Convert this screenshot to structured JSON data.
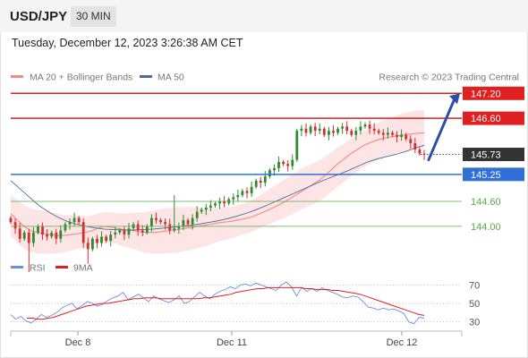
{
  "header": {
    "symbol": "USD/JPY",
    "timeframe": "30 MIN"
  },
  "timestamp": "Tuesday, December 12, 2023 3:26:38 AM CET",
  "legend": {
    "ma20_label": "MA 20 + Bollinger Bands",
    "ma50_label": "MA 50",
    "credit": "Research © 2023 Trading Central",
    "rsi_label": "RSI",
    "ma9_label": "9MA"
  },
  "colors": {
    "resistance": "#e02020",
    "pivot": "#2f6fd6",
    "support": "#5aa64a",
    "current": "#333333",
    "up_candle": "#2e8b2e",
    "down_candle": "#d32f2f",
    "ma20": "#f28b82",
    "ma50": "#4a6a9a",
    "band_fill": "#fde0e0",
    "arrow": "#2a4fa8",
    "rsi": "#6b8ee0",
    "rsi_ma": "#e02020"
  },
  "chart_data": [
    {
      "type": "candlestick",
      "title": "USD/JPY",
      "timeframe": "30 MIN",
      "x_ticks": [
        "Dec 8",
        "Dec 11",
        "Dec 12"
      ],
      "ylim": [
        143.2,
        147.4
      ],
      "current_price": 145.73,
      "levels": [
        {
          "name": "resistance",
          "value": 147.2,
          "label": "147.20"
        },
        {
          "name": "resistance",
          "value": 146.6,
          "label": "146.60"
        },
        {
          "name": "pivot",
          "value": 145.25,
          "label": "145.25"
        },
        {
          "name": "support",
          "value": 144.6,
          "label": "144.60"
        },
        {
          "name": "support",
          "value": 144.0,
          "label": "144.00"
        }
      ],
      "forecast_arrow": {
        "from": 145.6,
        "to": 147.2
      },
      "closes": [
        144.1,
        143.95,
        143.7,
        143.85,
        143.6,
        143.85,
        144.0,
        143.8,
        143.75,
        143.85,
        143.7,
        143.9,
        144.05,
        144.1,
        144.2,
        144.1,
        143.6,
        143.45,
        143.7,
        143.6,
        143.75,
        143.65,
        143.8,
        143.85,
        143.9,
        143.8,
        143.95,
        144.05,
        143.9,
        143.85,
        144.0,
        144.2,
        144.15,
        144.1,
        144.05,
        143.9,
        143.95,
        144.0,
        144.15,
        144.05,
        144.2,
        144.35,
        144.4,
        144.45,
        144.5,
        144.55,
        144.6,
        144.55,
        144.65,
        144.7,
        144.75,
        144.85,
        144.8,
        144.95,
        145.1,
        145.05,
        145.2,
        145.35,
        145.4,
        145.55,
        145.5,
        145.45,
        145.6,
        146.3,
        146.35,
        146.25,
        146.4,
        146.3,
        146.35,
        146.2,
        146.3,
        146.25,
        146.35,
        146.4,
        146.3,
        146.2,
        146.3,
        146.4,
        146.45,
        146.35,
        146.3,
        146.25,
        146.2,
        146.25,
        146.2,
        146.15,
        146.2,
        146.1,
        146.0,
        145.85,
        145.75,
        145.73
      ],
      "ma20": [
        144.3,
        144.15,
        144.0,
        143.9,
        143.85,
        143.82,
        143.8,
        143.78,
        143.78,
        143.8,
        143.82,
        143.85,
        143.88,
        143.95,
        144.0,
        143.98,
        143.95,
        143.92,
        143.9,
        143.88,
        143.85,
        143.85,
        143.86,
        143.88,
        143.9,
        143.92,
        143.95,
        143.97,
        144.0,
        144.02,
        144.05,
        144.08,
        144.1,
        144.12,
        144.15,
        144.18,
        144.22,
        144.28,
        144.35,
        144.42,
        144.5,
        144.58,
        144.68,
        144.78,
        144.88,
        144.98,
        145.08,
        145.2,
        145.35,
        145.5,
        145.62,
        145.75,
        145.85,
        145.95,
        146.02,
        146.08,
        146.12,
        146.15,
        146.18,
        146.2,
        146.22,
        146.24,
        146.25
      ],
      "ma50": [
        145.1,
        144.9,
        144.7,
        144.5,
        144.35,
        144.22,
        144.12,
        144.05,
        144.0,
        143.96,
        143.93,
        143.92,
        143.91,
        143.91,
        143.92,
        143.93,
        143.95,
        143.97,
        144.0,
        144.02,
        144.05,
        144.09,
        144.13,
        144.18,
        144.24,
        144.31,
        144.39,
        144.48,
        144.58,
        144.68,
        144.78,
        144.88,
        144.98,
        145.08,
        145.17,
        145.26,
        145.35,
        145.45,
        145.55,
        145.62,
        145.68,
        145.73,
        145.8,
        145.88,
        145.95
      ]
    },
    {
      "type": "line",
      "title": "RSI",
      "ylim": [
        20,
        80
      ],
      "y_ticks": [
        70,
        50,
        30
      ],
      "series": [
        {
          "name": "RSI",
          "values": [
            38,
            33,
            36,
            31,
            29,
            33,
            38,
            35,
            37,
            40,
            45,
            48,
            50,
            44,
            48,
            52,
            50,
            47,
            49,
            53,
            56,
            58,
            62,
            54,
            57,
            60,
            56,
            52,
            58,
            55,
            53,
            51,
            54,
            58,
            50,
            52,
            57,
            62,
            58,
            55,
            60,
            63,
            65,
            68,
            66,
            70,
            71,
            69,
            72,
            70,
            68,
            66,
            64,
            70,
            73,
            68,
            58,
            67,
            63,
            66,
            63,
            67,
            64,
            62,
            60,
            57,
            56,
            58,
            57,
            52,
            46,
            45,
            43,
            45,
            43,
            44,
            42,
            39,
            30,
            28,
            35,
            34
          ]
        },
        {
          "name": "9MA",
          "values": [
            34,
            34,
            33,
            33,
            34,
            35,
            37,
            39,
            41,
            43,
            45,
            47,
            48,
            49,
            50,
            50,
            51,
            52,
            53,
            54,
            55,
            55,
            56,
            56,
            56,
            55,
            55,
            55,
            55,
            55,
            55,
            55,
            55,
            56,
            56,
            57,
            58,
            59,
            60,
            62,
            63,
            64,
            65,
            66,
            66,
            67,
            67,
            67,
            67,
            67,
            67,
            67,
            66,
            66,
            65,
            65,
            65,
            64,
            64,
            63,
            62,
            61,
            60,
            58,
            56,
            54,
            52,
            50,
            48,
            46,
            44,
            42,
            40,
            38,
            37
          ]
        }
      ]
    }
  ]
}
